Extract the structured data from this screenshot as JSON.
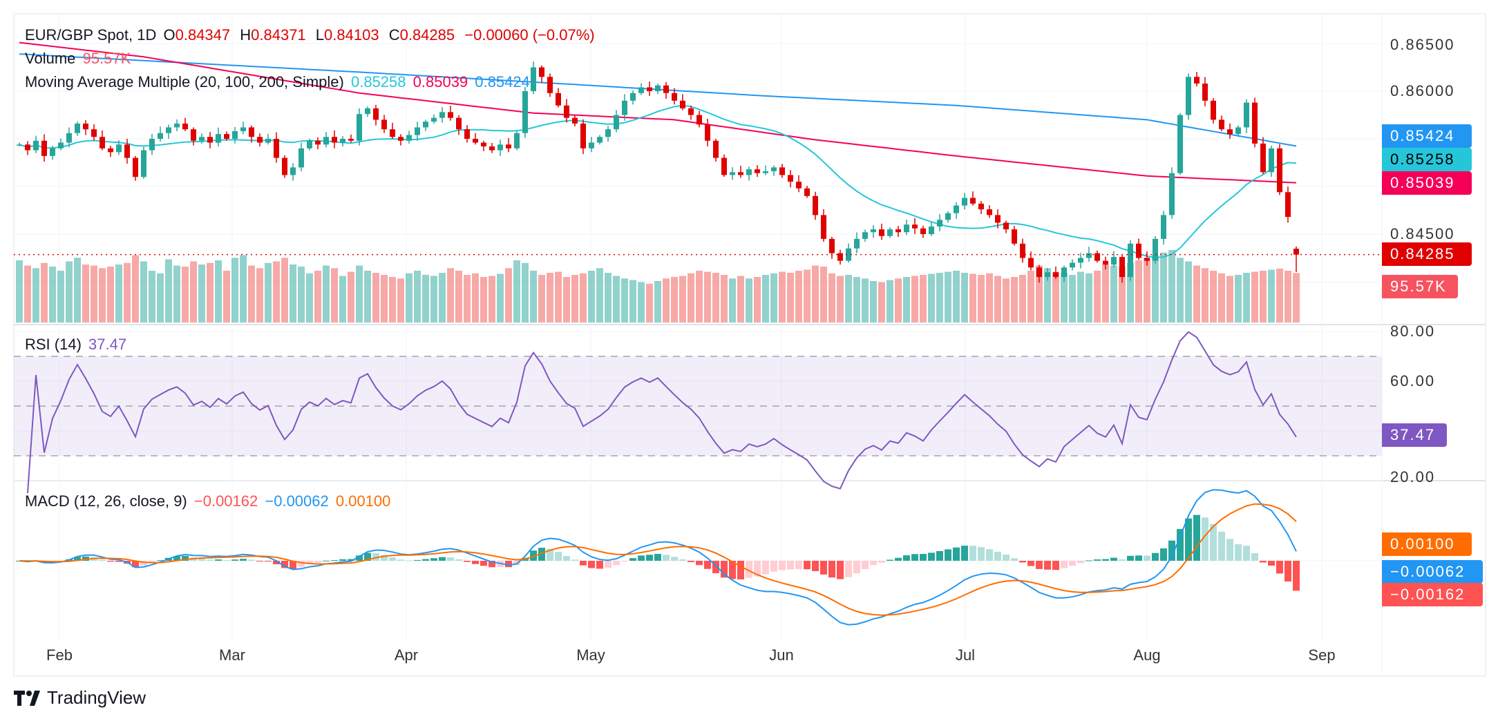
{
  "header": {
    "symbol": "EUR/GBP Spot, 1D",
    "o_label": "O",
    "o": "0.84347",
    "h_label": "H",
    "h": "0.84371",
    "l_label": "L",
    "l": "0.84103",
    "c_label": "C",
    "c": "0.84285",
    "change": "−0.00060 (−0.07%)"
  },
  "volume_legend": {
    "label": "Volume",
    "value": "95.57K"
  },
  "ma_legend": {
    "label": "Moving Average Multiple (20, 100, 200, Simple)",
    "ma20": "0.85258",
    "ma100": "0.85039",
    "ma200": "0.85424"
  },
  "rsi_legend": {
    "label": "RSI (14)",
    "value": "37.47"
  },
  "macd_legend": {
    "label": "MACD (12, 26, close, 9)",
    "hist": "−0.00162",
    "macd": "−0.00062",
    "signal": "0.00100"
  },
  "price_axis": [
    "0.86500",
    "0.86000",
    "0.84500"
  ],
  "rsi_axis": [
    "80.00",
    "60.00",
    "20.00"
  ],
  "tags": {
    "ma200": "0.85424",
    "ma20": "0.85258",
    "ma100": "0.85039",
    "last": "0.84285",
    "volume": "95.57K",
    "rsi": "37.47",
    "signal": "0.00100",
    "macd": "−0.00062",
    "hist": "−0.00162"
  },
  "months": [
    "Feb",
    "Mar",
    "Apr",
    "May",
    "Jun",
    "Jul",
    "Aug",
    "Sep"
  ],
  "brand": "TradingView",
  "colors": {
    "up": "#26a69a",
    "down": "#ef5350",
    "ma20": "#26c6da",
    "ma100": "#f50057",
    "ma200": "#2196f3",
    "rsi": "#7e57c2",
    "macd": "#2196f3",
    "signal": "#ff6d00",
    "last": "#e00000"
  },
  "chart_data": {
    "type": "candlestick",
    "title": "EUR/GBP Spot, 1D",
    "ylim": [
      0.838,
      0.866
    ],
    "last_candle": {
      "o": 0.84347,
      "h": 0.84371,
      "l": 0.84103,
      "c": 0.84285
    },
    "closes": [
      0.8544,
      0.8538,
      0.8548,
      0.8532,
      0.854,
      0.8546,
      0.8556,
      0.8566,
      0.856,
      0.8552,
      0.854,
      0.8536,
      0.8544,
      0.853,
      0.851,
      0.8538,
      0.855,
      0.8556,
      0.8562,
      0.8566,
      0.856,
      0.8548,
      0.8552,
      0.8546,
      0.8555,
      0.855,
      0.8558,
      0.8562,
      0.8552,
      0.8546,
      0.855,
      0.853,
      0.8512,
      0.852,
      0.854,
      0.8548,
      0.8544,
      0.8552,
      0.8546,
      0.855,
      0.8548,
      0.8576,
      0.8582,
      0.857,
      0.856,
      0.8552,
      0.8548,
      0.8554,
      0.8562,
      0.8568,
      0.8572,
      0.8578,
      0.8572,
      0.856,
      0.855,
      0.8546,
      0.8542,
      0.8538,
      0.8544,
      0.854,
      0.8556,
      0.86,
      0.8625,
      0.8615,
      0.8598,
      0.8585,
      0.8572,
      0.8566,
      0.854,
      0.8546,
      0.8552,
      0.856,
      0.8575,
      0.859,
      0.8598,
      0.8604,
      0.86,
      0.8606,
      0.8598,
      0.859,
      0.8582,
      0.8575,
      0.8565,
      0.8548,
      0.853,
      0.8512,
      0.8515,
      0.8512,
      0.8518,
      0.8514,
      0.8516,
      0.852,
      0.8512,
      0.8505,
      0.8498,
      0.849,
      0.847,
      0.8445,
      0.843,
      0.8422,
      0.8435,
      0.8445,
      0.8452,
      0.8455,
      0.8448,
      0.8455,
      0.8452,
      0.846,
      0.8456,
      0.845,
      0.8458,
      0.8465,
      0.8472,
      0.848,
      0.8488,
      0.8482,
      0.8476,
      0.847,
      0.8462,
      0.8455,
      0.844,
      0.8425,
      0.8415,
      0.8405,
      0.841,
      0.8405,
      0.8415,
      0.842,
      0.8425,
      0.843,
      0.8422,
      0.8418,
      0.8426,
      0.8405,
      0.844,
      0.8425,
      0.8422,
      0.8445,
      0.847,
      0.8514,
      0.8575,
      0.8615,
      0.8608,
      0.859,
      0.857,
      0.856,
      0.8555,
      0.8562,
      0.8588,
      0.8545,
      0.8515,
      0.854,
      0.8494,
      0.8468,
      0.84285
    ],
    "volumes_k": [
      120,
      110,
      105,
      115,
      108,
      100,
      118,
      125,
      112,
      110,
      105,
      108,
      112,
      115,
      130,
      118,
      100,
      95,
      122,
      110,
      108,
      118,
      112,
      115,
      120,
      100,
      125,
      130,
      110,
      105,
      115,
      118,
      125,
      112,
      108,
      95,
      100,
      110,
      105,
      90,
      98,
      110,
      100,
      96,
      92,
      88,
      85,
      95,
      100,
      92,
      90,
      96,
      105,
      100,
      92,
      95,
      88,
      90,
      94,
      105,
      120,
      115,
      100,
      92,
      96,
      98,
      88,
      92,
      95,
      100,
      105,
      96,
      90,
      85,
      82,
      78,
      75,
      80,
      85,
      88,
      90,
      95,
      100,
      98,
      96,
      92,
      85,
      90,
      85,
      88,
      92,
      95,
      98,
      96,
      100,
      102,
      110,
      108,
      95,
      90,
      92,
      88,
      85,
      80,
      78,
      82,
      85,
      88,
      90,
      92,
      94,
      96,
      98,
      100,
      96,
      94,
      92,
      95,
      90,
      85,
      88,
      92,
      100,
      110,
      105,
      98,
      96,
      92,
      98,
      95,
      100,
      112,
      110,
      108,
      115,
      120,
      125,
      130,
      135,
      140,
      125,
      118,
      110,
      105,
      100,
      95,
      90,
      92,
      96,
      98,
      100,
      102,
      104,
      100,
      95.57
    ],
    "ma100_points": [
      [
        0,
        0.8651
      ],
      [
        15,
        0.8636
      ],
      [
        41,
        0.8598
      ],
      [
        62,
        0.8577
      ],
      [
        79,
        0.857
      ],
      [
        96,
        0.8549
      ],
      [
        113,
        0.8532
      ],
      [
        136,
        0.8511
      ],
      [
        154,
        0.85039
      ]
    ],
    "ma200_points": [
      [
        0,
        0.8639
      ],
      [
        41,
        0.862
      ],
      [
        67,
        0.8607
      ],
      [
        90,
        0.8595
      ],
      [
        113,
        0.8585
      ],
      [
        136,
        0.857
      ],
      [
        154,
        0.85424
      ]
    ],
    "rsi_levels": [
      70,
      50,
      30
    ],
    "rsi_range": [
      15,
      85
    ],
    "macd_range": [
      -0.0035,
      0.0042
    ]
  }
}
